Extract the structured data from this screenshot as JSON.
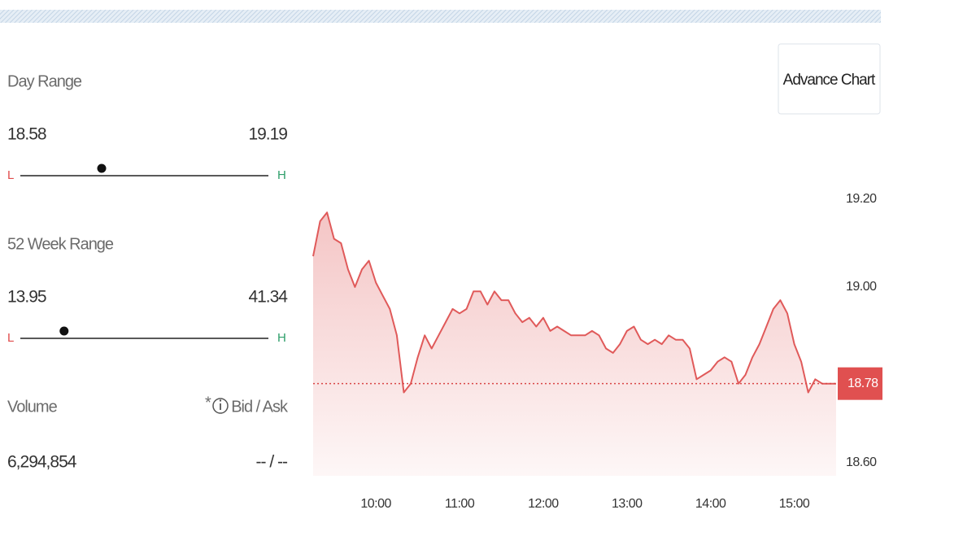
{
  "panel": {
    "day_range": {
      "title": "Day Range",
      "low": "18.58",
      "high": "19.19",
      "low_label": "L",
      "high_label": "H"
    },
    "week52_range": {
      "title": "52 Week Range",
      "low": "13.95",
      "high": "41.34",
      "low_label": "L",
      "high_label": "H"
    },
    "volume": {
      "title": "Volume",
      "value": "6,294,854"
    },
    "bid_ask": {
      "note": "*",
      "title": "Bid / Ask",
      "value": "-- / --"
    },
    "button": "Advance Chart"
  },
  "chart_data": {
    "type": "line",
    "color": "#e05a5a",
    "x": [
      "09:15",
      "09:20",
      "09:25",
      "09:30",
      "09:35",
      "09:40",
      "09:45",
      "09:50",
      "09:55",
      "10:00",
      "10:05",
      "10:10",
      "10:15",
      "10:20",
      "10:25",
      "10:30",
      "10:35",
      "10:40",
      "10:45",
      "10:50",
      "10:55",
      "11:00",
      "11:05",
      "11:10",
      "11:15",
      "11:20",
      "11:25",
      "11:30",
      "11:35",
      "11:40",
      "11:45",
      "11:50",
      "11:55",
      "12:00",
      "12:05",
      "12:10",
      "12:15",
      "12:20",
      "12:25",
      "12:30",
      "12:35",
      "12:40",
      "12:45",
      "12:50",
      "12:55",
      "13:00",
      "13:05",
      "13:10",
      "13:15",
      "13:20",
      "13:25",
      "13:30",
      "13:35",
      "13:40",
      "13:45",
      "13:50",
      "13:55",
      "14:00",
      "14:05",
      "14:10",
      "14:15",
      "14:20",
      "14:25",
      "14:30",
      "14:35",
      "14:40",
      "14:45",
      "14:50",
      "14:55",
      "15:00",
      "15:05",
      "15:10",
      "15:15",
      "15:20",
      "15:25",
      "15:30"
    ],
    "values": [
      19.07,
      19.15,
      19.17,
      19.11,
      19.1,
      19.04,
      19.0,
      19.04,
      19.06,
      19.01,
      18.98,
      18.95,
      18.89,
      18.76,
      18.78,
      18.84,
      18.89,
      18.86,
      18.89,
      18.92,
      18.95,
      18.94,
      18.95,
      18.99,
      18.99,
      18.96,
      18.99,
      18.97,
      18.97,
      18.94,
      18.92,
      18.93,
      18.91,
      18.93,
      18.9,
      18.91,
      18.9,
      18.89,
      18.89,
      18.89,
      18.9,
      18.89,
      18.86,
      18.85,
      18.87,
      18.9,
      18.91,
      18.88,
      18.87,
      18.88,
      18.87,
      18.89,
      18.88,
      18.88,
      18.86,
      18.79,
      18.8,
      18.81,
      18.83,
      18.84,
      18.83,
      18.78,
      18.8,
      18.84,
      18.87,
      18.91,
      18.95,
      18.97,
      18.94,
      18.87,
      18.83,
      18.76,
      18.79,
      18.78,
      18.78,
      18.78
    ],
    "xticks": [
      "10:00",
      "11:00",
      "12:00",
      "13:00",
      "14:00",
      "15:00"
    ],
    "ylim": [
      18.57,
      19.25
    ],
    "yticks": [
      {
        "value": 18.6,
        "label": "18.60"
      },
      {
        "value": 19.0,
        "label": "19.00"
      },
      {
        "value": 19.2,
        "label": "19.20"
      }
    ],
    "last_price": 18.78
  }
}
